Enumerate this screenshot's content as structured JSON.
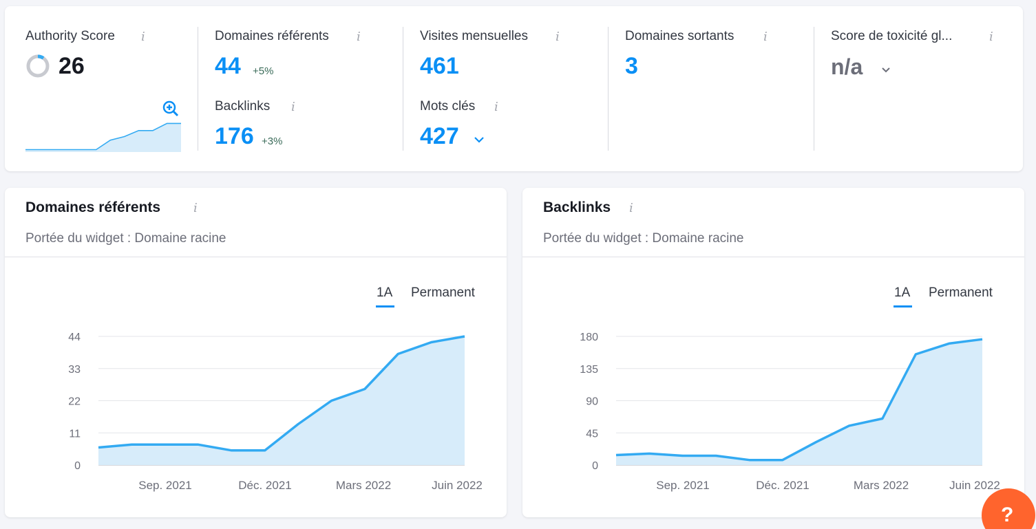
{
  "summary": {
    "authority": {
      "label": "Authority Score",
      "value": "26"
    },
    "ref_domains": {
      "label": "Domaines référents",
      "value": "44",
      "delta": "+5%"
    },
    "backlinks": {
      "label": "Backlinks",
      "value": "176",
      "delta": "+3%"
    },
    "visits": {
      "label": "Visites mensuelles",
      "value": "461"
    },
    "keywords": {
      "label": "Mots clés",
      "value": "427"
    },
    "outgoing": {
      "label": "Domaines sortants",
      "value": "3"
    },
    "toxicity": {
      "label": "Score de toxicité gl...",
      "value": "n/a"
    },
    "info_icon": "i"
  },
  "authority_trend": [
    2,
    2,
    2,
    2,
    2,
    2,
    10,
    13,
    18,
    18,
    24,
    24
  ],
  "ref_card": {
    "title": "Domaines référents",
    "subtitle": "Portée du widget : Domaine racine",
    "tab_1a": "1A",
    "tab_perm": "Permanent"
  },
  "bl_card": {
    "title": "Backlinks",
    "subtitle": "Portée du widget : Domaine racine",
    "tab_1a": "1A",
    "tab_perm": "Permanent"
  },
  "help": {
    "label": "?"
  },
  "colors": {
    "accent": "#0a8ff5",
    "line": "#33aaf2",
    "fill": "#d7ecfa",
    "help": "#ff642d"
  },
  "chart_data": [
    {
      "type": "area",
      "xlabels": [
        "Sep. 2021",
        "Déc. 2021",
        "Mars 2022",
        "Juin 2022"
      ],
      "yticks": [
        0,
        11,
        22,
        33,
        44
      ],
      "ylim": [
        0,
        44
      ],
      "values": [
        6,
        7,
        7,
        7,
        5,
        5,
        14,
        22,
        26,
        38,
        42,
        44
      ],
      "grid": true
    },
    {
      "type": "area",
      "xlabels": [
        "Sep. 2021",
        "Déc. 2021",
        "Mars 2022",
        "Juin 2022"
      ],
      "yticks": [
        0,
        45,
        90,
        135,
        180
      ],
      "ylim": [
        0,
        180
      ],
      "values": [
        14,
        16,
        13,
        13,
        7,
        7,
        32,
        55,
        65,
        155,
        170,
        176
      ],
      "grid": true
    }
  ]
}
